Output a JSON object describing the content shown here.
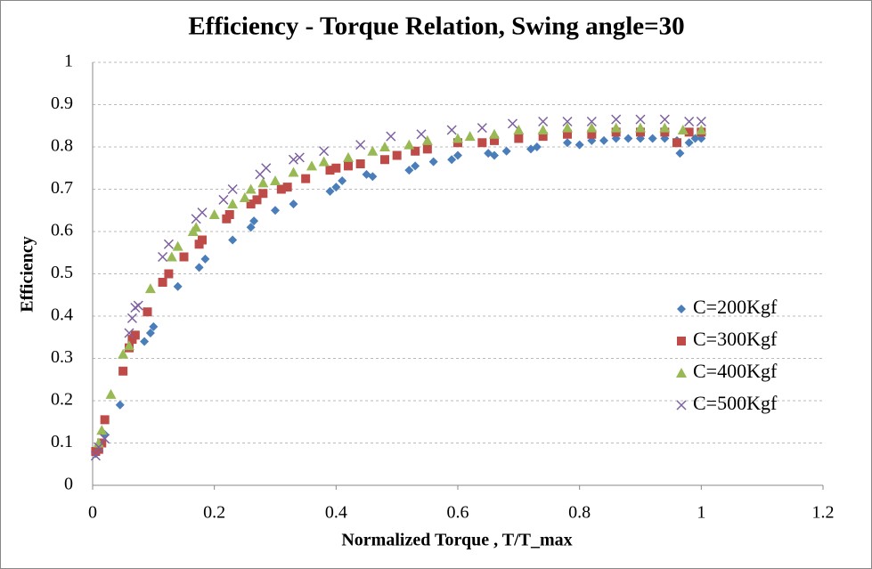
{
  "chart_data": {
    "type": "scatter",
    "title": "Efficiency - Torque Relation, Swing angle=30",
    "x_label": "Normalized Torque , T/T_max",
    "y_label": "Efficiency",
    "xlim": [
      0,
      1.2
    ],
    "xticks": [
      0,
      0.2,
      0.4,
      0.6,
      0.8,
      1,
      1.2
    ],
    "ylim": [
      0,
      1
    ],
    "yticks": [
      0,
      0.1,
      0.2,
      0.3,
      0.4,
      0.5,
      0.6,
      0.7,
      0.8,
      0.9,
      1
    ],
    "grid": true,
    "legend": "right",
    "series": [
      {
        "name": "C=200Kgf",
        "color": "#4a7ebb",
        "marker": "diamond",
        "x": [
          0.005,
          0.01,
          0.015,
          0.02,
          0.045,
          0.085,
          0.095,
          0.1,
          0.14,
          0.175,
          0.185,
          0.23,
          0.26,
          0.265,
          0.3,
          0.33,
          0.39,
          0.4,
          0.41,
          0.45,
          0.46,
          0.52,
          0.53,
          0.56,
          0.59,
          0.6,
          0.65,
          0.66,
          0.68,
          0.72,
          0.73,
          0.78,
          0.8,
          0.82,
          0.84,
          0.86,
          0.88,
          0.9,
          0.92,
          0.94,
          0.96,
          0.965,
          0.98,
          0.99,
          1.0
        ],
        "values": [
          0.075,
          0.09,
          0.1,
          0.12,
          0.19,
          0.34,
          0.36,
          0.375,
          0.47,
          0.515,
          0.535,
          0.58,
          0.61,
          0.625,
          0.65,
          0.665,
          0.695,
          0.705,
          0.72,
          0.735,
          0.73,
          0.745,
          0.755,
          0.765,
          0.77,
          0.78,
          0.785,
          0.78,
          0.79,
          0.795,
          0.8,
          0.81,
          0.805,
          0.815,
          0.815,
          0.82,
          0.82,
          0.82,
          0.82,
          0.82,
          0.815,
          0.785,
          0.81,
          0.82,
          0.82
        ]
      },
      {
        "name": "C=300Kgf",
        "color": "#be4b48",
        "marker": "square",
        "x": [
          0.005,
          0.01,
          0.015,
          0.02,
          0.05,
          0.06,
          0.065,
          0.07,
          0.09,
          0.115,
          0.125,
          0.15,
          0.175,
          0.18,
          0.22,
          0.225,
          0.26,
          0.27,
          0.28,
          0.31,
          0.32,
          0.35,
          0.39,
          0.4,
          0.42,
          0.44,
          0.48,
          0.5,
          0.53,
          0.55,
          0.6,
          0.64,
          0.66,
          0.7,
          0.74,
          0.78,
          0.82,
          0.86,
          0.9,
          0.94,
          0.96,
          0.98,
          1.0
        ],
        "values": [
          0.08,
          0.085,
          0.1,
          0.155,
          0.27,
          0.325,
          0.345,
          0.355,
          0.41,
          0.48,
          0.5,
          0.54,
          0.57,
          0.58,
          0.63,
          0.64,
          0.665,
          0.675,
          0.69,
          0.7,
          0.705,
          0.725,
          0.745,
          0.75,
          0.755,
          0.76,
          0.77,
          0.78,
          0.79,
          0.795,
          0.81,
          0.81,
          0.815,
          0.82,
          0.825,
          0.83,
          0.83,
          0.835,
          0.835,
          0.835,
          0.81,
          0.835,
          0.835
        ]
      },
      {
        "name": "C=400Kgf",
        "color": "#98b954",
        "marker": "triangle",
        "x": [
          0.01,
          0.015,
          0.03,
          0.05,
          0.06,
          0.095,
          0.13,
          0.14,
          0.165,
          0.17,
          0.2,
          0.23,
          0.25,
          0.26,
          0.28,
          0.3,
          0.33,
          0.36,
          0.38,
          0.42,
          0.46,
          0.48,
          0.52,
          0.55,
          0.6,
          0.62,
          0.66,
          0.7,
          0.74,
          0.78,
          0.82,
          0.86,
          0.9,
          0.94,
          0.97,
          1.0
        ],
        "values": [
          0.1,
          0.13,
          0.215,
          0.31,
          0.33,
          0.465,
          0.54,
          0.565,
          0.6,
          0.61,
          0.64,
          0.665,
          0.68,
          0.7,
          0.715,
          0.72,
          0.74,
          0.755,
          0.765,
          0.775,
          0.79,
          0.8,
          0.805,
          0.815,
          0.82,
          0.825,
          0.83,
          0.84,
          0.84,
          0.845,
          0.845,
          0.845,
          0.845,
          0.845,
          0.84,
          0.84
        ]
      },
      {
        "name": "C=500Kgf",
        "color": "#7d60a0",
        "marker": "x",
        "x": [
          0.005,
          0.01,
          0.02,
          0.06,
          0.065,
          0.07,
          0.075,
          0.115,
          0.125,
          0.17,
          0.18,
          0.215,
          0.23,
          0.275,
          0.285,
          0.33,
          0.34,
          0.38,
          0.44,
          0.49,
          0.54,
          0.59,
          0.64,
          0.69,
          0.74,
          0.78,
          0.82,
          0.86,
          0.9,
          0.94,
          0.98,
          1.0
        ],
        "values": [
          0.07,
          0.09,
          0.11,
          0.36,
          0.395,
          0.42,
          0.425,
          0.54,
          0.57,
          0.63,
          0.645,
          0.675,
          0.7,
          0.735,
          0.75,
          0.77,
          0.775,
          0.79,
          0.805,
          0.825,
          0.83,
          0.84,
          0.845,
          0.855,
          0.86,
          0.86,
          0.86,
          0.865,
          0.865,
          0.865,
          0.86,
          0.86
        ]
      }
    ]
  }
}
